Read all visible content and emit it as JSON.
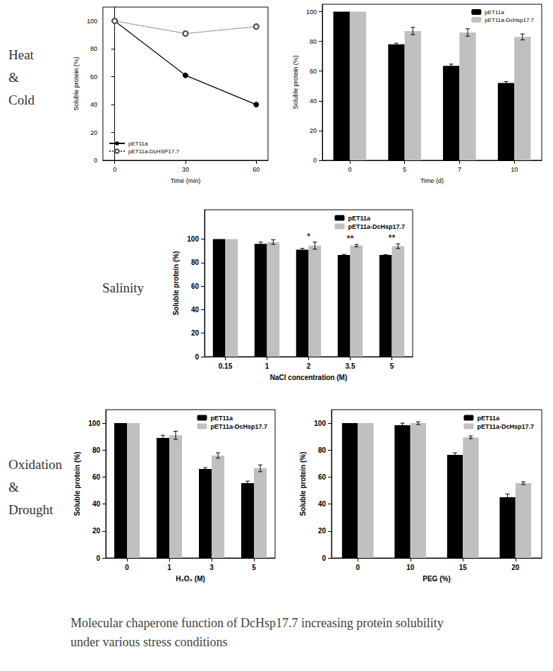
{
  "row_labels": [
    [
      "Heat",
      "&",
      "Cold"
    ],
    [
      "Salinity"
    ],
    [
      "Oxidation",
      "&",
      "Drought"
    ]
  ],
  "caption": [
    "Molecular chaperone function of DcHsp17.7 increasing protein solubility",
    "under various stress conditions"
  ],
  "chart_data": [
    {
      "type": "line",
      "x": [
        0,
        30,
        60
      ],
      "xlim": [
        -5,
        65
      ],
      "xticks": [
        0,
        30,
        60
      ],
      "ylim": [
        0,
        110
      ],
      "yticks": [
        0,
        20,
        40,
        60,
        80,
        100
      ],
      "x_label": "Time (min)",
      "y_label": "Soluble protein (%)",
      "legend": "lower left",
      "grid": false,
      "series": [
        {
          "name": "pET11a",
          "color": "#000000",
          "values": [
            100,
            61,
            40
          ],
          "marker": "filled circle",
          "line_style": "solid"
        },
        {
          "name": "pET11a-DcHSP17.7",
          "color": "#444444",
          "values": [
            100,
            91,
            96
          ],
          "marker": "open circle",
          "line_style": "dotted"
        }
      ]
    },
    {
      "type": "bar",
      "categories": [
        "0",
        "5",
        "7",
        "10"
      ],
      "ylim": [
        0,
        105
      ],
      "yticks": [
        0,
        20,
        40,
        60,
        80,
        100
      ],
      "x_label": "Time (d)",
      "y_label": "Soluble protein (%)",
      "legend": "upper right",
      "grid": false,
      "series": [
        {
          "name": "pET11a",
          "color": "#000000",
          "values": [
            100,
            78,
            63.5,
            52
          ],
          "errors": [
            0,
            0.8,
            1.2,
            1
          ]
        },
        {
          "name": "pET11a-DcHsp17.7",
          "color": "#c0c0c0",
          "values": [
            100,
            87,
            86,
            83
          ],
          "errors": [
            0,
            2.5,
            2.5,
            2
          ]
        }
      ]
    },
    {
      "type": "bar",
      "categories": [
        "0.15",
        "1",
        "2",
        "3.5",
        "5"
      ],
      "ylim": [
        0,
        125
      ],
      "yticks": [
        0,
        20,
        40,
        60,
        80,
        100
      ],
      "x_label": "NaCl concentration (M)",
      "y_label": "Soluble protein (%)",
      "legend": "upper right",
      "grid": false,
      "series": [
        {
          "name": "pET11a",
          "color": "#000000",
          "values": [
            100,
            96,
            91,
            86.5,
            86.5
          ],
          "errors": [
            0,
            1.5,
            1.2,
            0.5,
            0.3
          ]
        },
        {
          "name": "pET11a-DcHsp17.7",
          "color": "#c0c0c0",
          "values": [
            100,
            97.5,
            94.5,
            94.5,
            94
          ],
          "errors": [
            0,
            2,
            3,
            1,
            2
          ]
        }
      ],
      "annotations": [
        {
          "category": "2",
          "text": "*"
        },
        {
          "category": "3.5",
          "text": "**"
        },
        {
          "category": "5",
          "text": "**"
        }
      ]
    },
    {
      "type": "bar",
      "categories": [
        "0",
        "1",
        "3",
        "5"
      ],
      "ylim": [
        0,
        110
      ],
      "yticks": [
        0,
        20,
        40,
        60,
        80,
        100
      ],
      "x_label": "H₂O₂ (M)",
      "y_label": "Soluble protein (%)",
      "legend": "upper right",
      "grid": false,
      "series": [
        {
          "name": "pET11a",
          "color": "#000000",
          "values": [
            100,
            89,
            66,
            55.5
          ],
          "errors": [
            0,
            2,
            1,
            1.5
          ]
        },
        {
          "name": "pET11a-DcHsp17.7",
          "color": "#c0c0c0",
          "values": [
            100,
            91,
            76,
            66.5
          ],
          "errors": [
            0,
            3,
            2,
            2.5
          ]
        }
      ]
    },
    {
      "type": "bar",
      "categories": [
        "0",
        "10",
        "15",
        "20"
      ],
      "ylim": [
        0,
        110
      ],
      "yticks": [
        0,
        20,
        40,
        60,
        80,
        100
      ],
      "x_label": "PEG (%)",
      "y_label": "Soluble protein (%)",
      "legend": "upper right",
      "grid": false,
      "series": [
        {
          "name": "pET11a",
          "color": "#000000",
          "values": [
            100,
            98.5,
            76.5,
            45
          ],
          "errors": [
            0,
            1.5,
            1.5,
            2.5
          ]
        },
        {
          "name": "pET11a-DcHsp17.7",
          "color": "#c0c0c0",
          "values": [
            100,
            100,
            89.5,
            55.5
          ],
          "errors": [
            0,
            1,
            1,
            1
          ]
        }
      ]
    }
  ]
}
